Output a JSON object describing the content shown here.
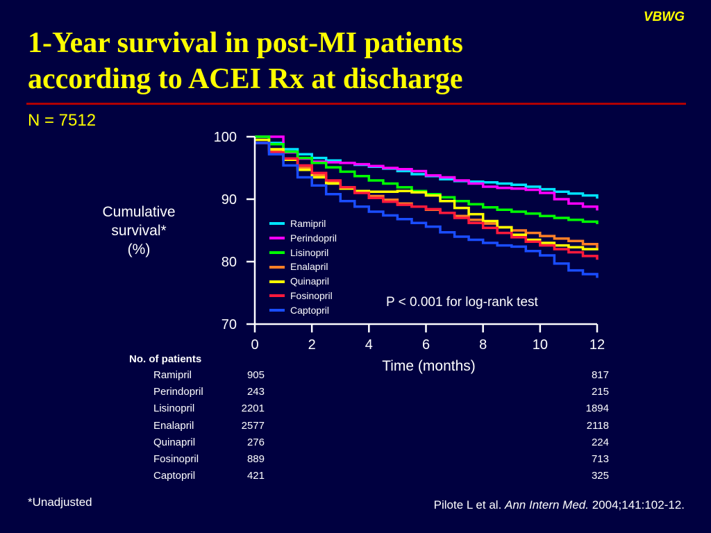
{
  "brand": "VBWG",
  "title_lines": [
    "1-Year survival in post-MI patients",
    "according to ACEI Rx at discharge"
  ],
  "n_label": "N = 7512",
  "colors": {
    "background": "#000040",
    "title": "#ffff00",
    "rule": "#b00000",
    "text": "#ffffff"
  },
  "chart_data": {
    "type": "line",
    "ylabel_lines": [
      "Cumulative",
      "survival*",
      "(%)"
    ],
    "xlabel": "Time (months)",
    "xlim": [
      0,
      12
    ],
    "ylim": [
      70,
      100
    ],
    "xticks": [
      0,
      2,
      4,
      6,
      8,
      10,
      12
    ],
    "yticks": [
      70,
      80,
      90,
      100
    ],
    "grid": false,
    "legend_position": "left-bottom inside plot",
    "annotation": "P < 0.001 for log-rank test",
    "x": [
      0,
      0.5,
      1,
      1.5,
      2,
      2.5,
      3,
      3.5,
      4,
      4.5,
      5,
      5.5,
      6,
      6.5,
      7,
      7.5,
      8,
      8.5,
      9,
      9.5,
      10,
      10.5,
      11,
      11.5,
      12
    ],
    "series": [
      {
        "name": "Ramipril",
        "color": "#00e5ff",
        "values": [
          100,
          99.0,
          98.0,
          97.2,
          96.6,
          96.2,
          95.8,
          95.5,
          95.2,
          94.9,
          94.5,
          94.0,
          93.7,
          93.2,
          92.9,
          92.8,
          92.7,
          92.5,
          92.3,
          92.0,
          91.6,
          91.2,
          90.9,
          90.6,
          90.1
        ]
      },
      {
        "name": "Perindopril",
        "color": "#ff00ff",
        "values": [
          100,
          100,
          97.5,
          96.5,
          96.0,
          95.9,
          95.8,
          95.6,
          95.3,
          95.0,
          94.8,
          94.5,
          93.8,
          93.5,
          93.0,
          92.5,
          92.0,
          91.8,
          91.7,
          91.5,
          91.0,
          90.0,
          89.3,
          88.8,
          88.2
        ]
      },
      {
        "name": "Lisinopril",
        "color": "#00ff00",
        "values": [
          100,
          98.8,
          97.6,
          96.6,
          95.8,
          95.1,
          94.4,
          93.7,
          93.0,
          92.5,
          91.9,
          91.3,
          90.8,
          90.3,
          89.7,
          89.2,
          88.7,
          88.3,
          88.0,
          87.7,
          87.3,
          87.0,
          86.7,
          86.4,
          86.0
        ]
      },
      {
        "name": "Enalapril",
        "color": "#ff7f27",
        "values": [
          99.0,
          97.8,
          96.5,
          95.0,
          93.8,
          92.8,
          91.9,
          91.2,
          90.5,
          89.9,
          89.3,
          88.8,
          88.3,
          87.8,
          87.3,
          86.7,
          86.1,
          85.5,
          85.0,
          84.6,
          84.1,
          83.7,
          83.3,
          82.8,
          82.2
        ]
      },
      {
        "name": "Quinapril",
        "color": "#ffff00",
        "values": [
          99.5,
          98.0,
          96.3,
          94.7,
          93.5,
          92.5,
          91.7,
          91.3,
          91.2,
          91.2,
          91.3,
          91.1,
          90.6,
          89.7,
          88.6,
          87.6,
          86.5,
          85.5,
          84.3,
          83.5,
          83.0,
          82.6,
          82.3,
          82.0,
          81.8
        ]
      },
      {
        "name": "Fosinopril",
        "color": "#ff1a3c",
        "values": [
          99.0,
          97.5,
          96.5,
          95.4,
          94.2,
          93.0,
          91.9,
          91.0,
          90.2,
          89.6,
          89.1,
          88.8,
          88.4,
          87.8,
          87.0,
          86.2,
          85.4,
          84.6,
          83.9,
          83.2,
          82.6,
          82.0,
          81.5,
          80.9,
          80.3
        ]
      },
      {
        "name": "Captopril",
        "color": "#1a4dff",
        "values": [
          99.0,
          97.2,
          95.4,
          93.5,
          92.2,
          90.8,
          89.7,
          88.8,
          88.0,
          87.4,
          86.8,
          86.2,
          85.6,
          84.7,
          84.0,
          83.5,
          83.0,
          82.6,
          82.4,
          81.7,
          81.0,
          79.7,
          78.6,
          78.0,
          77.4
        ]
      }
    ]
  },
  "patients_table": {
    "title": "No. of patients",
    "rows": [
      {
        "name": "Ramipril",
        "start": "905",
        "end": "817"
      },
      {
        "name": "Perindopril",
        "start": "243",
        "end": "215"
      },
      {
        "name": "Lisinopril",
        "start": "2201",
        "end": "1894"
      },
      {
        "name": "Enalapril",
        "start": "2577",
        "end": "2118"
      },
      {
        "name": "Quinapril",
        "start": "276",
        "end": "224"
      },
      {
        "name": "Fosinopril",
        "start": "889",
        "end": "713"
      },
      {
        "name": "Captopril",
        "start": "421",
        "end": "325"
      }
    ]
  },
  "footnote": "*Unadjusted",
  "citation": {
    "authors": "Pilote L et al. ",
    "journal": "Ann Intern Med.",
    "rest": " 2004;141:102-12."
  }
}
